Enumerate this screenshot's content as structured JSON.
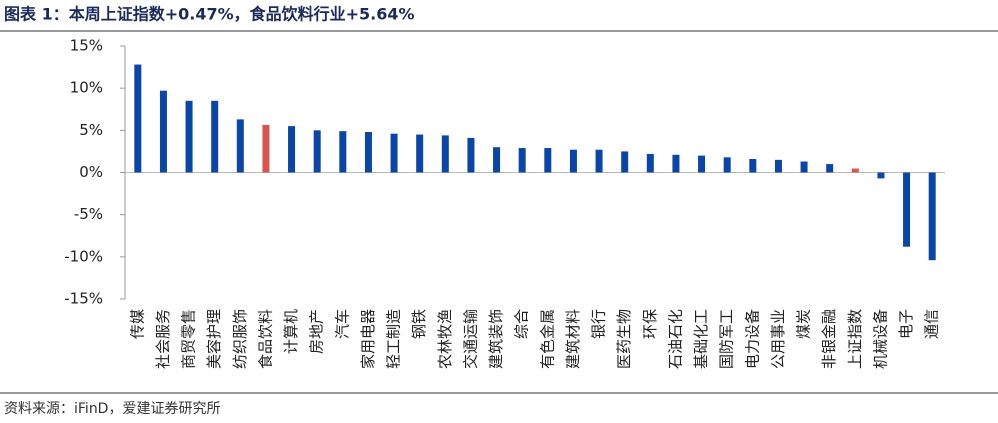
{
  "chart_data": {
    "type": "bar",
    "title": "图表 1：本周上证指数+0.47%，食品饮料行业+5.64%",
    "source": "资料来源：iFinD，爱建证券研究所",
    "categories": [
      "传媒",
      "社会服务",
      "商贸零售",
      "美容护理",
      "纺织服饰",
      "食品饮料",
      "计算机",
      "房地产",
      "汽车",
      "家用电器",
      "轻工制造",
      "钢铁",
      "农林牧渔",
      "交通运输",
      "建筑装饰",
      "综合",
      "有色金属",
      "建筑材料",
      "银行",
      "医药生物",
      "环保",
      "石油石化",
      "基础化工",
      "国防军工",
      "电力设备",
      "公用事业",
      "煤炭",
      "非银金融",
      "上证指数",
      "机械设备",
      "电子",
      "通信"
    ],
    "values": [
      12.8,
      9.7,
      8.5,
      8.5,
      6.3,
      5.64,
      5.5,
      5.0,
      4.9,
      4.8,
      4.6,
      4.5,
      4.4,
      4.1,
      3.0,
      2.9,
      2.9,
      2.7,
      2.7,
      2.5,
      2.2,
      2.1,
      2.0,
      1.8,
      1.6,
      1.5,
      1.3,
      1.0,
      0.47,
      -0.7,
      -8.8,
      -10.4
    ],
    "colors": [
      "#0a45a8",
      "#0a45a8",
      "#0a45a8",
      "#0a45a8",
      "#0a45a8",
      "#d9534f",
      "#0a45a8",
      "#0a45a8",
      "#0a45a8",
      "#0a45a8",
      "#0a45a8",
      "#0a45a8",
      "#0a45a8",
      "#0a45a8",
      "#0a45a8",
      "#0a45a8",
      "#0a45a8",
      "#0a45a8",
      "#0a45a8",
      "#0a45a8",
      "#0a45a8",
      "#0a45a8",
      "#0a45a8",
      "#0a45a8",
      "#0a45a8",
      "#0a45a8",
      "#0a45a8",
      "#0a45a8",
      "#d9534f",
      "#0a45a8",
      "#0a45a8",
      "#0a45a8"
    ],
    "ylim": [
      -15,
      15
    ],
    "yticks": [
      {
        "value": -15,
        "label": "-15%"
      },
      {
        "value": -10,
        "label": "-10%"
      },
      {
        "value": -5,
        "label": "-5%"
      },
      {
        "value": 0,
        "label": "0%"
      },
      {
        "value": 5,
        "label": "5%"
      },
      {
        "value": 10,
        "label": "10%"
      },
      {
        "value": 15,
        "label": "15%"
      }
    ],
    "grid": false
  }
}
